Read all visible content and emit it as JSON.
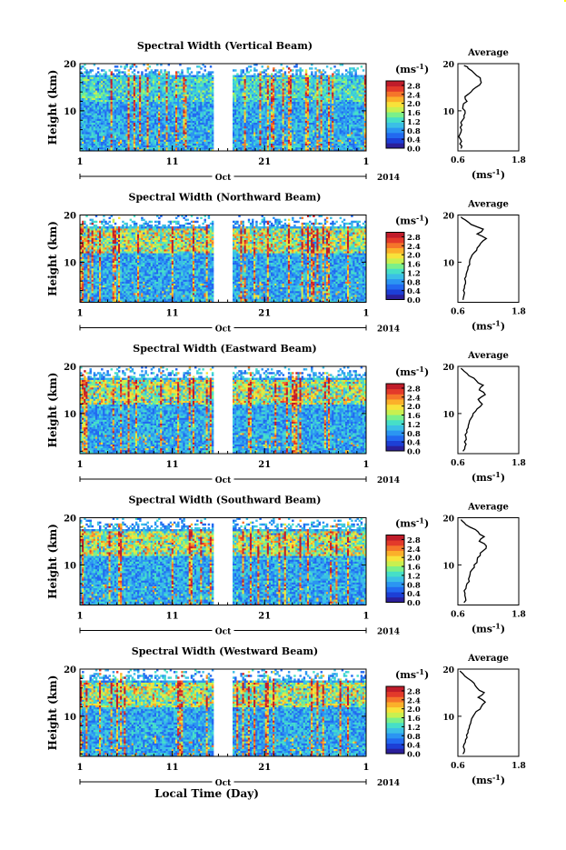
{
  "figure": {
    "xlabel": "Local Time (Day)",
    "month_label": "Oct",
    "year_label": "2014",
    "ylabel": "Height (km)",
    "colorbar_unit": "(ms",
    "colorbar_unit_exp": "-1",
    "colorbar_unit_close": ")",
    "colorbar_ticks": [
      "0.0",
      "0.4",
      "0.8",
      "1.2",
      "1.6",
      "2.0",
      "2.4",
      "2.8"
    ],
    "colormap": [
      "#2b1f9a",
      "#1d3fd6",
      "#2269f0",
      "#2b95f2",
      "#3bbfe6",
      "#46dfc8",
      "#7bf08a",
      "#c8f050",
      "#f8e23a",
      "#fbb02a",
      "#f5752a",
      "#e33a2a",
      "#c01c2a"
    ],
    "avg_title": "Average",
    "avg_xlabel_main": "(ms",
    "avg_xlabel_exp": "-1",
    "avg_xlabel_close": ")",
    "avg_xticks": [
      "0.6",
      "1.8"
    ]
  },
  "chart_data": [
    {
      "type": "heatmap",
      "title": "Spectral Width (Vertical Beam)",
      "x_ticks": [
        "1",
        "11",
        "21",
        "1"
      ],
      "y_ticks": [
        "10",
        "20"
      ],
      "xlim_days": [
        1,
        32
      ],
      "ylim_km": [
        1.5,
        20
      ],
      "data_gap_days": [
        15.5,
        17.5
      ],
      "clim": [
        0.0,
        3.0
      ],
      "profile": {
        "xlim": [
          0.6,
          1.8
        ],
        "height_km": [
          2,
          3,
          4,
          5,
          6,
          7,
          8,
          9,
          10,
          11,
          12,
          13,
          14,
          15,
          16,
          17,
          18,
          19,
          19.6
        ],
        "value": [
          0.66,
          0.64,
          0.65,
          0.64,
          0.67,
          0.68,
          0.69,
          0.72,
          0.74,
          0.7,
          0.78,
          0.74,
          0.86,
          0.96,
          1.06,
          1.04,
          0.92,
          0.8,
          0.72
        ]
      }
    },
    {
      "type": "heatmap",
      "title": "Spectral Width (Northward Beam)",
      "x_ticks": [
        "1",
        "11",
        "21",
        "1"
      ],
      "y_ticks": [
        "10",
        "20"
      ],
      "xlim_days": [
        1,
        32
      ],
      "ylim_km": [
        1.5,
        20
      ],
      "data_gap_days": [
        15.5,
        17.5
      ],
      "clim": [
        0.0,
        3.0
      ],
      "profile": {
        "xlim": [
          0.6,
          1.8
        ],
        "height_km": [
          2,
          3,
          4,
          5,
          6,
          7,
          8,
          9,
          10,
          11,
          12,
          13,
          14,
          15,
          16,
          17,
          18,
          19,
          19.6
        ],
        "value": [
          0.7,
          0.72,
          0.71,
          0.73,
          0.75,
          0.76,
          0.78,
          0.8,
          0.83,
          0.86,
          0.92,
          0.98,
          1.05,
          1.16,
          0.98,
          1.1,
          0.86,
          0.74,
          0.66
        ]
      }
    },
    {
      "type": "heatmap",
      "title": "Spectral Width (Eastward Beam)",
      "x_ticks": [
        "1",
        "11",
        "21",
        "1"
      ],
      "y_ticks": [
        "10",
        "20"
      ],
      "xlim_days": [
        1,
        32
      ],
      "ylim_km": [
        1.5,
        20
      ],
      "data_gap_days": [
        15.5,
        17.5
      ],
      "clim": [
        0.0,
        3.0
      ],
      "profile": {
        "xlim": [
          0.6,
          1.8
        ],
        "height_km": [
          2,
          3,
          4,
          5,
          6,
          7,
          8,
          9,
          10,
          11,
          12,
          13,
          14,
          15,
          16,
          17,
          18,
          19,
          19.6
        ],
        "value": [
          0.7,
          0.74,
          0.73,
          0.76,
          0.78,
          0.8,
          0.82,
          0.86,
          0.9,
          0.98,
          1.08,
          1.0,
          1.14,
          1.02,
          1.1,
          0.96,
          0.82,
          0.72,
          0.66
        ]
      }
    },
    {
      "type": "heatmap",
      "title": "Spectral Width (Southward Beam)",
      "x_ticks": [
        "1",
        "11",
        "21",
        "1"
      ],
      "y_ticks": [
        "10",
        "20"
      ],
      "xlim_days": [
        1,
        32
      ],
      "ylim_km": [
        1.5,
        20
      ],
      "data_gap_days": [
        15.5,
        17.5
      ],
      "clim": [
        0.0,
        3.0
      ],
      "profile": {
        "xlim": [
          0.6,
          1.8
        ],
        "height_km": [
          2,
          3,
          4,
          5,
          6,
          7,
          8,
          9,
          10,
          11,
          12,
          13,
          14,
          15,
          16,
          17,
          18,
          19,
          19.6
        ],
        "value": [
          0.72,
          0.75,
          0.74,
          0.76,
          0.78,
          0.81,
          0.84,
          0.88,
          0.92,
          0.98,
          1.04,
          1.1,
          1.16,
          1.02,
          1.12,
          1.0,
          0.84,
          0.72,
          0.66
        ]
      }
    },
    {
      "type": "heatmap",
      "title": "Spectral Width (Westward Beam)",
      "x_ticks": [
        "1",
        "11",
        "21",
        "1"
      ],
      "y_ticks": [
        "10",
        "20"
      ],
      "xlim_days": [
        1,
        32
      ],
      "ylim_km": [
        1.5,
        20
      ],
      "data_gap_days": [
        15.5,
        17.5
      ],
      "clim": [
        0.0,
        3.0
      ],
      "profile": {
        "xlim": [
          0.6,
          1.8
        ],
        "height_km": [
          2,
          3,
          4,
          5,
          6,
          7,
          8,
          9,
          10,
          11,
          12,
          13,
          14,
          15,
          16,
          17,
          18,
          19,
          19.6
        ],
        "value": [
          0.7,
          0.73,
          0.72,
          0.75,
          0.77,
          0.8,
          0.83,
          0.86,
          0.9,
          0.96,
          1.06,
          1.14,
          1.0,
          1.12,
          0.98,
          0.92,
          0.8,
          0.7,
          0.64
        ]
      }
    }
  ]
}
